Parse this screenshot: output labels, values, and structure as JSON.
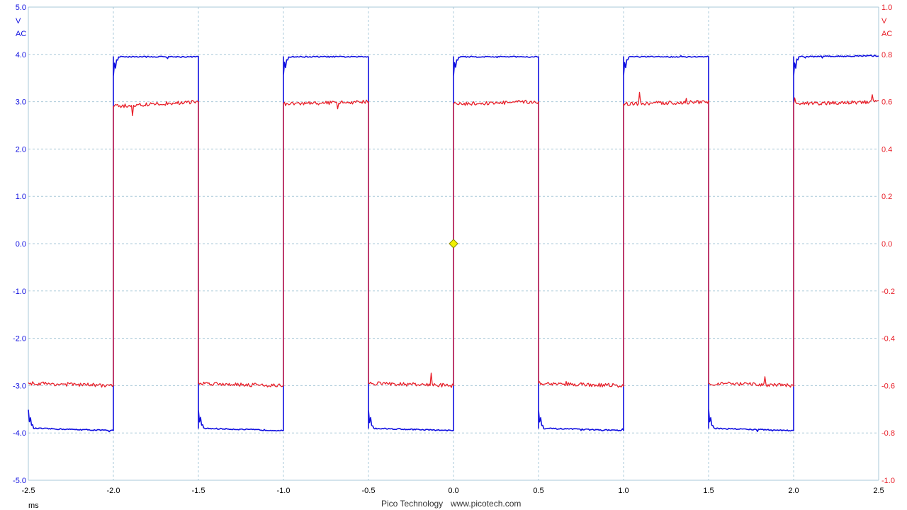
{
  "footer": {
    "brand": "Pico Technology",
    "url": "www.picotech.com"
  },
  "chart_data": {
    "type": "line",
    "title": "",
    "xlabel": "ms",
    "xlim": [
      -2.5,
      2.5
    ],
    "x_ticks": [
      "-2.5",
      "-2.0",
      "-1.5",
      "-1.0",
      "-0.5",
      "0.0",
      "0.5",
      "1.0",
      "1.5",
      "2.0",
      "2.5"
    ],
    "grid": true,
    "left_axis": {
      "unit": "V",
      "coupling": "AC",
      "ylim": [
        -5.0,
        5.0
      ],
      "ticks": [
        "5.0",
        "4.0",
        "3.0",
        "2.0",
        "1.0",
        "0.0",
        "-1.0",
        "-2.0",
        "-3.0",
        "-4.0",
        "-5.0"
      ],
      "color": "#1010e0"
    },
    "right_axis": {
      "unit": "V",
      "coupling": "AC",
      "ylim": [
        -1.0,
        1.0
      ],
      "ticks": [
        "1.0",
        "0.8",
        "0.6",
        "0.4",
        "0.2",
        "0.0",
        "-0.2",
        "-0.4",
        "-0.6",
        "-0.8",
        "-1.0"
      ],
      "color": "#e8202a"
    },
    "trigger_marker": {
      "x": 0.0,
      "y": 0.0,
      "color": "#f0f000"
    },
    "series": [
      {
        "axis": "left",
        "color": "#1010e0",
        "x": [
          -2.5,
          -2.0,
          -2.0,
          -1.5,
          -1.5,
          -1.0,
          -1.0,
          -0.5,
          -0.5,
          0.0,
          0.0,
          0.5,
          0.5,
          1.0,
          1.0,
          1.5,
          1.5,
          2.0,
          2.0,
          2.5
        ],
        "values": [
          -3.9,
          -3.95,
          3.95,
          3.95,
          -3.9,
          -3.95,
          3.95,
          3.95,
          -3.9,
          -3.95,
          3.95,
          3.95,
          -3.9,
          -3.95,
          3.95,
          3.95,
          -3.9,
          -3.95,
          3.95,
          3.97
        ]
      },
      {
        "axis": "right",
        "color": "#e8202a",
        "x": [
          -2.5,
          -2.0,
          -2.0,
          -1.5,
          -1.5,
          -1.0,
          -1.0,
          -0.5,
          -0.5,
          0.0,
          0.0,
          0.5,
          0.5,
          1.0,
          1.0,
          1.5,
          1.5,
          2.0,
          2.0,
          2.5
        ],
        "values": [
          -0.59,
          -0.6,
          0.58,
          0.6,
          -0.59,
          -0.6,
          0.59,
          0.6,
          -0.59,
          -0.6,
          0.59,
          0.6,
          -0.59,
          -0.6,
          0.59,
          0.6,
          -0.59,
          -0.6,
          0.59,
          0.6
        ]
      }
    ]
  }
}
